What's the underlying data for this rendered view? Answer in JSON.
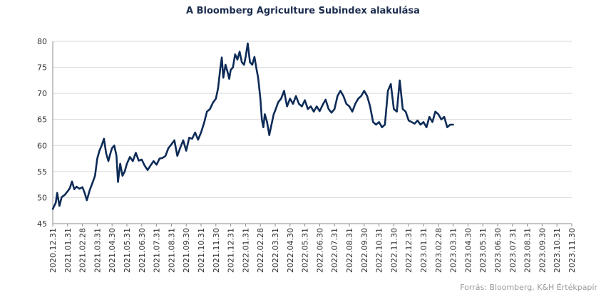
{
  "chart_data": {
    "type": "line",
    "title": "A Bloomberg Agriculture Subindex  alakulása",
    "source": "Forrás: Bloomberg, K&H Értékpapír",
    "xlabel": "",
    "ylabel": "",
    "ylim": [
      45,
      80
    ],
    "yticks": [
      45,
      50,
      55,
      60,
      65,
      70,
      75,
      80
    ],
    "grid": true,
    "legend": "none",
    "line_color": "#0d2b57",
    "x_tick_labels": [
      "2020.12.31",
      "2021.01.31",
      "2021.02.28",
      "2021.03.31",
      "2021.04.30",
      "2021.05.31",
      "2021.06.30",
      "2021.07.31",
      "2021.08.31",
      "2021.09.30",
      "2021.10.31",
      "2021.11.30",
      "2021.12.31",
      "2022.01.31",
      "2022.02.28",
      "2022.03.31",
      "2022.04.30",
      "2022.05.31",
      "2022.06.30",
      "2022.07.31",
      "2022.08.31",
      "2022.09.30",
      "2022.10.31",
      "2022.11.30",
      "2022.12.31",
      "2023.01.31",
      "2023.02.28",
      "2023.03.31",
      "2023.04.30",
      "2023.05.31",
      "2023.06.30",
      "2023.07.31",
      "2023.08.31",
      "2023.09.30",
      "2023.10.31",
      "2023.11.30"
    ],
    "series": [
      {
        "values": [
          [
            0.0,
            47.8
          ],
          [
            0.2,
            49.0
          ],
          [
            0.3,
            50.9
          ],
          [
            0.45,
            48.4
          ],
          [
            0.6,
            50.1
          ],
          [
            0.8,
            50.5
          ],
          [
            1.0,
            51.2
          ],
          [
            1.15,
            51.8
          ],
          [
            1.3,
            53.1
          ],
          [
            1.45,
            51.6
          ],
          [
            1.6,
            52.1
          ],
          [
            1.8,
            51.7
          ],
          [
            2.0,
            52.0
          ],
          [
            2.15,
            50.9
          ],
          [
            2.3,
            49.5
          ],
          [
            2.5,
            51.5
          ],
          [
            2.7,
            53.0
          ],
          [
            2.85,
            54.2
          ],
          [
            3.0,
            57.5
          ],
          [
            3.15,
            59.0
          ],
          [
            3.3,
            60.0
          ],
          [
            3.45,
            61.3
          ],
          [
            3.6,
            58.5
          ],
          [
            3.75,
            57.0
          ],
          [
            3.9,
            58.6
          ],
          [
            4.0,
            59.5
          ],
          [
            4.15,
            60.0
          ],
          [
            4.3,
            58.0
          ],
          [
            4.4,
            53.0
          ],
          [
            4.55,
            56.5
          ],
          [
            4.7,
            54.2
          ],
          [
            4.85,
            55.0
          ],
          [
            5.0,
            56.5
          ],
          [
            5.2,
            57.8
          ],
          [
            5.4,
            57.0
          ],
          [
            5.6,
            58.6
          ],
          [
            5.8,
            57.1
          ],
          [
            6.0,
            57.3
          ],
          [
            6.2,
            56.1
          ],
          [
            6.4,
            55.3
          ],
          [
            6.6,
            56.2
          ],
          [
            6.8,
            57.0
          ],
          [
            7.0,
            56.3
          ],
          [
            7.2,
            57.5
          ],
          [
            7.4,
            57.6
          ],
          [
            7.6,
            58.0
          ],
          [
            7.8,
            59.5
          ],
          [
            8.0,
            60.2
          ],
          [
            8.2,
            61.0
          ],
          [
            8.4,
            58.0
          ],
          [
            8.6,
            59.6
          ],
          [
            8.8,
            61.0
          ],
          [
            9.0,
            59.0
          ],
          [
            9.2,
            61.5
          ],
          [
            9.4,
            61.3
          ],
          [
            9.6,
            62.5
          ],
          [
            9.8,
            61.1
          ],
          [
            10.0,
            62.5
          ],
          [
            10.2,
            64.3
          ],
          [
            10.4,
            66.5
          ],
          [
            10.6,
            67.0
          ],
          [
            10.8,
            68.2
          ],
          [
            11.0,
            69.0
          ],
          [
            11.15,
            71.0
          ],
          [
            11.3,
            74.8
          ],
          [
            11.4,
            76.9
          ],
          [
            11.5,
            73.0
          ],
          [
            11.65,
            75.5
          ],
          [
            11.8,
            74.0
          ],
          [
            11.9,
            72.8
          ],
          [
            12.0,
            74.5
          ],
          [
            12.15,
            75.0
          ],
          [
            12.3,
            77.5
          ],
          [
            12.45,
            76.5
          ],
          [
            12.6,
            78.0
          ],
          [
            12.75,
            76.0
          ],
          [
            12.9,
            75.5
          ],
          [
            13.0,
            76.9
          ],
          [
            13.15,
            79.6
          ],
          [
            13.3,
            76.0
          ],
          [
            13.45,
            75.5
          ],
          [
            13.6,
            77.0
          ],
          [
            13.75,
            74.5
          ],
          [
            13.85,
            73.0
          ],
          [
            14.0,
            69.0
          ],
          [
            14.1,
            65.0
          ],
          [
            14.2,
            63.5
          ],
          [
            14.3,
            66.0
          ],
          [
            14.45,
            64.5
          ],
          [
            14.6,
            62.0
          ],
          [
            14.75,
            64.0
          ],
          [
            14.9,
            66.0
          ],
          [
            15.0,
            66.7
          ],
          [
            15.2,
            68.3
          ],
          [
            15.4,
            69.0
          ],
          [
            15.6,
            70.5
          ],
          [
            15.8,
            67.5
          ],
          [
            16.0,
            69.0
          ],
          [
            16.2,
            68.0
          ],
          [
            16.4,
            69.5
          ],
          [
            16.6,
            68.0
          ],
          [
            16.8,
            67.5
          ],
          [
            17.0,
            68.7
          ],
          [
            17.2,
            67.0
          ],
          [
            17.4,
            67.5
          ],
          [
            17.6,
            66.5
          ],
          [
            17.8,
            67.5
          ],
          [
            18.0,
            66.6
          ],
          [
            18.2,
            67.8
          ],
          [
            18.4,
            68.8
          ],
          [
            18.6,
            67.0
          ],
          [
            18.8,
            66.3
          ],
          [
            19.0,
            67.0
          ],
          [
            19.2,
            69.5
          ],
          [
            19.4,
            70.5
          ],
          [
            19.6,
            69.5
          ],
          [
            19.8,
            68.0
          ],
          [
            20.0,
            67.5
          ],
          [
            20.2,
            66.5
          ],
          [
            20.4,
            68.0
          ],
          [
            20.6,
            69.0
          ],
          [
            20.8,
            69.5
          ],
          [
            21.0,
            70.5
          ],
          [
            21.2,
            69.5
          ],
          [
            21.4,
            67.5
          ],
          [
            21.6,
            64.5
          ],
          [
            21.8,
            64.0
          ],
          [
            22.0,
            64.5
          ],
          [
            22.2,
            63.5
          ],
          [
            22.4,
            64.0
          ],
          [
            22.6,
            70.5
          ],
          [
            22.8,
            71.8
          ],
          [
            23.0,
            67.0
          ],
          [
            23.2,
            66.5
          ],
          [
            23.4,
            72.5
          ],
          [
            23.6,
            67.0
          ],
          [
            23.8,
            66.5
          ],
          [
            24.0,
            64.8
          ],
          [
            24.2,
            64.5
          ],
          [
            24.4,
            64.2
          ],
          [
            24.6,
            64.8
          ],
          [
            24.8,
            64.0
          ],
          [
            25.0,
            64.5
          ],
          [
            25.2,
            63.5
          ],
          [
            25.4,
            65.5
          ],
          [
            25.6,
            64.5
          ],
          [
            25.8,
            66.5
          ],
          [
            26.0,
            66.0
          ],
          [
            26.2,
            65.0
          ],
          [
            26.4,
            65.5
          ],
          [
            26.6,
            63.5
          ],
          [
            26.8,
            64.0
          ],
          [
            27.0,
            64.0
          ]
        ]
      }
    ]
  }
}
